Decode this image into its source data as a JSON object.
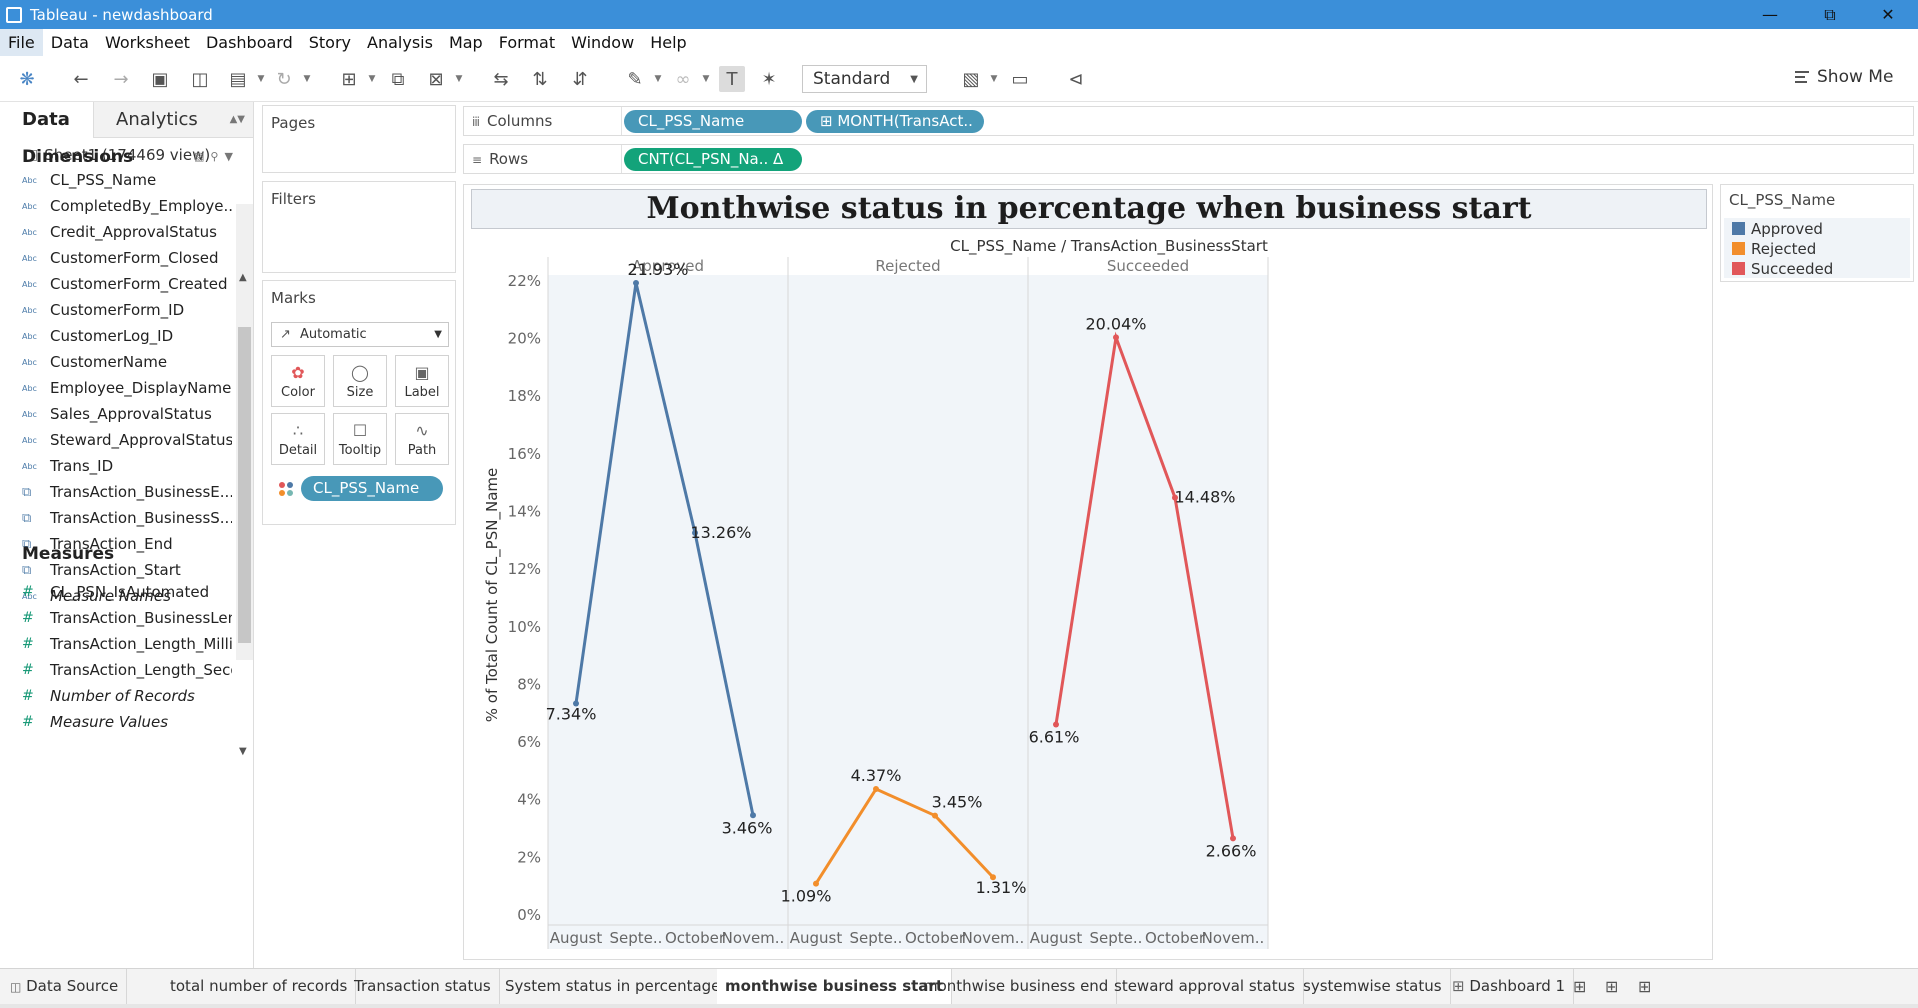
{
  "window": {
    "title": "Tableau - newdashboard"
  },
  "menu": [
    "File",
    "Data",
    "Worksheet",
    "Dashboard",
    "Story",
    "Analysis",
    "Map",
    "Format",
    "Window",
    "Help"
  ],
  "toolbar": {
    "fit_select": "Standard",
    "show_me": "Show Me"
  },
  "data_pane": {
    "tabs": [
      "Data",
      "Analytics"
    ],
    "source": "Sheet1 (174469 view)",
    "dimensions_label": "Dimensions",
    "dimensions": [
      {
        "type": "Abc",
        "name": "CL_PSS_Name"
      },
      {
        "type": "Abc",
        "name": "CompletedBy_Employe..."
      },
      {
        "type": "Abc",
        "name": "Credit_ApprovalStatus"
      },
      {
        "type": "Abc",
        "name": "CustomerForm_Closed"
      },
      {
        "type": "Abc",
        "name": "CustomerForm_Created"
      },
      {
        "type": "Abc",
        "name": "CustomerForm_ID"
      },
      {
        "type": "Abc",
        "name": "CustomerLog_ID"
      },
      {
        "type": "Abc",
        "name": "CustomerName"
      },
      {
        "type": "Abc",
        "name": "Employee_DisplayName"
      },
      {
        "type": "Abc",
        "name": "Sales_ApprovalStatus"
      },
      {
        "type": "Abc",
        "name": "Steward_ApprovalStatus"
      },
      {
        "type": "Abc",
        "name": "Trans_ID"
      },
      {
        "type": "date",
        "name": "TransAction_BusinessE..."
      },
      {
        "type": "date",
        "name": "TransAction_BusinessS..."
      },
      {
        "type": "date",
        "name": "TransAction_End"
      },
      {
        "type": "date",
        "name": "TransAction_Start"
      },
      {
        "type": "Abc",
        "name": "Measure Names",
        "italic": true
      }
    ],
    "measures_label": "Measures",
    "measures": [
      {
        "type": "#",
        "name": "CL_PSN_IsAutomated"
      },
      {
        "type": "#",
        "name": "TransAction_BusinessLen..."
      },
      {
        "type": "#",
        "name": "TransAction_Length_MilliS..."
      },
      {
        "type": "#",
        "name": "TransAction_Length_Seco..."
      },
      {
        "type": "#",
        "name": "Number of Records",
        "italic": true
      },
      {
        "type": "#",
        "name": "Measure Values",
        "italic": true
      }
    ]
  },
  "cards": {
    "pages": "Pages",
    "filters": "Filters",
    "marks": "Marks",
    "mark_type": "Automatic",
    "mark_buttons": [
      "Color",
      "Size",
      "Label",
      "Detail",
      "Tooltip",
      "Path"
    ],
    "mark_pill": "CL_PSS_Name"
  },
  "shelves": {
    "columns_label": "Columns",
    "rows_label": "Rows",
    "columns": [
      "CL_PSS_Name",
      "⊞ MONTH(TransAct.."
    ],
    "rows": [
      "CNT(CL_PSN_Na..  Δ"
    ]
  },
  "legend": {
    "title": "CL_PSS_Name",
    "items": [
      {
        "name": "Approved",
        "color": "#4e79a7"
      },
      {
        "name": "Rejected",
        "color": "#f28e2b"
      },
      {
        "name": "Succeeded",
        "color": "#e15759"
      }
    ]
  },
  "chart_data": {
    "type": "line",
    "title": "Monthwise status in percentage when business start",
    "subtitle": "CL_PSS_Name / TransAction_BusinessStart",
    "ylabel": "% of Total Count of CL_PSN_Name",
    "ylim": [
      0,
      23
    ],
    "yticks": [
      "0%",
      "2%",
      "4%",
      "6%",
      "8%",
      "10%",
      "12%",
      "14%",
      "16%",
      "18%",
      "20%",
      "22%"
    ],
    "ytick_values": [
      0,
      2,
      4,
      6,
      8,
      10,
      12,
      14,
      16,
      18,
      20,
      22
    ],
    "categories": [
      "August",
      "Septe..",
      "October",
      "Novem.."
    ],
    "panels": [
      {
        "name": "Approved",
        "color": "#4e79a7",
        "values": [
          7.34,
          21.93,
          13.26,
          3.46
        ],
        "labels": [
          "7.34%",
          "21.93%",
          "13.26%",
          "3.46%"
        ]
      },
      {
        "name": "Rejected",
        "color": "#f28e2b",
        "values": [
          1.09,
          4.37,
          3.45,
          1.31
        ],
        "labels": [
          "1.09%",
          "4.37%",
          "3.45%",
          "1.31%"
        ]
      },
      {
        "name": "Succeeded",
        "color": "#e15759",
        "values": [
          6.61,
          20.04,
          14.48,
          2.66
        ],
        "labels": [
          "6.61%",
          "20.04%",
          "14.48%",
          "2.66%"
        ]
      }
    ]
  },
  "sheet_tabs": [
    "Data Source",
    "total number of records",
    "Transaction status",
    "System status in percentage",
    "monthwise business start",
    "monthwise business end",
    "steward approval status",
    "systemwise status",
    "Dashboard 1"
  ],
  "active_sheet": "monthwise business start"
}
